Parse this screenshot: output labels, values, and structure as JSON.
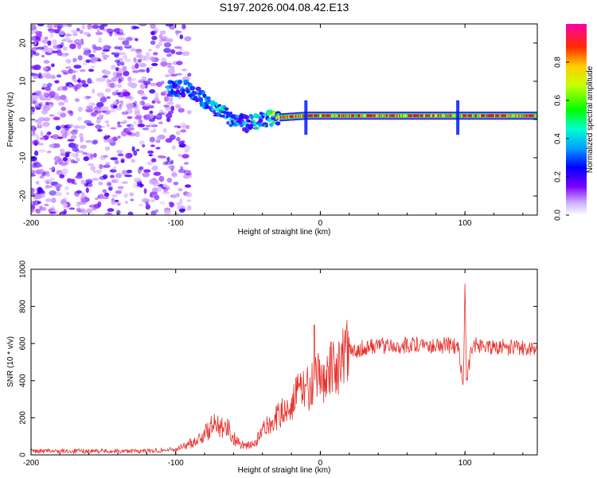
{
  "title": "S197.2026.004.08.42.E13",
  "chart_data": [
    {
      "type": "heatmap",
      "panel": "spectrogram",
      "xlabel": "Height of straight line (km)",
      "ylabel": "Frequency (Hz)",
      "xlim": [
        -200,
        150
      ],
      "ylim": [
        -25,
        25
      ],
      "xticks": [
        "-200",
        "-100",
        "0",
        "100"
      ],
      "yticks": [
        "20",
        "10",
        "0",
        "-10",
        "-20"
      ],
      "colorbar": {
        "label": "Normalized spectral amplitude",
        "range": [
          0,
          1
        ],
        "ticks": [
          "0.0",
          "0.2",
          "0.4",
          "0.6",
          "0.8"
        ],
        "colormap": [
          "#ffffff",
          "#7b00ff",
          "#0000ff",
          "#00e5ff",
          "#00ff00",
          "#ffff00",
          "#ff0000",
          "#ff00aa"
        ]
      },
      "ridge": [
        {
          "x": -100,
          "f": 8,
          "amp": 0.35
        },
        {
          "x": -90,
          "f": 8,
          "amp": 0.3
        },
        {
          "x": -80,
          "f": 5,
          "amp": 0.35
        },
        {
          "x": -70,
          "f": 2,
          "amp": 0.4
        },
        {
          "x": -60,
          "f": 0,
          "amp": 0.4
        },
        {
          "x": -50,
          "f": -1,
          "amp": 0.35
        },
        {
          "x": -40,
          "f": 0,
          "amp": 0.45
        },
        {
          "x": -30,
          "f": 0.5,
          "amp": 0.7
        },
        {
          "x": -10,
          "f": 1,
          "amp": 0.8
        },
        {
          "x": 0,
          "f": 1,
          "amp": 0.85
        },
        {
          "x": 50,
          "f": 1,
          "amp": 0.9
        },
        {
          "x": 100,
          "f": 1,
          "amp": 0.9
        },
        {
          "x": 150,
          "f": 1,
          "amp": 0.9
        }
      ]
    },
    {
      "type": "line",
      "panel": "snr",
      "xlabel": "Height of straight line (km)",
      "ylabel": "SNR (10 * v/v)",
      "xlim": [
        -200,
        150
      ],
      "ylim": [
        0,
        1000
      ],
      "xticks": [
        "-200",
        "-100",
        "0",
        "100"
      ],
      "yticks": [
        "1000",
        "800",
        "600",
        "400",
        "200",
        "0"
      ],
      "color": "#e8312b",
      "x": [
        -200,
        -150,
        -120,
        -100,
        -90,
        -80,
        -75,
        -70,
        -65,
        -60,
        -55,
        -50,
        -45,
        -40,
        -35,
        -30,
        -25,
        -20,
        -15,
        -10,
        -5,
        0,
        5,
        10,
        15,
        20,
        30,
        40,
        50,
        60,
        70,
        80,
        90,
        95,
        99,
        100,
        101,
        105,
        110,
        120,
        130,
        140,
        150
      ],
      "y": [
        20,
        20,
        20,
        30,
        60,
        110,
        150,
        170,
        160,
        90,
        60,
        50,
        60,
        130,
        170,
        200,
        240,
        280,
        340,
        360,
        380,
        420,
        440,
        470,
        520,
        550,
        580,
        590,
        590,
        590,
        600,
        590,
        590,
        580,
        400,
        950,
        400,
        590,
        590,
        585,
        580,
        575,
        570
      ]
    }
  ]
}
